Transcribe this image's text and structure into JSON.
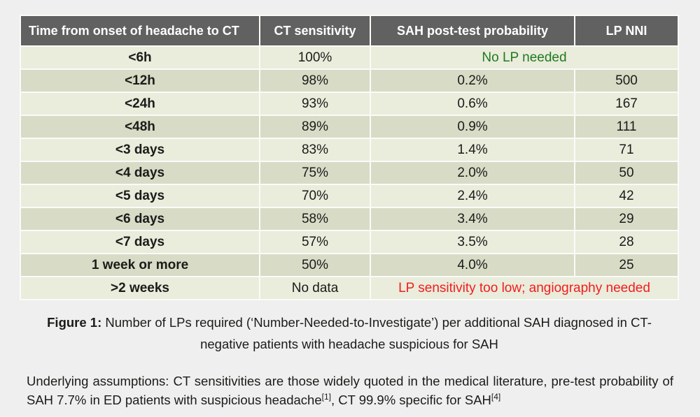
{
  "colors": {
    "page_bg": "#efefef",
    "table_gap": "#fbfbf8",
    "header_bg": "#616161",
    "header_text": "#ffffff",
    "row_light": "#eaecdc",
    "row_dark": "#d8dbc6",
    "body_text": "#1b1b19",
    "green": "#1e7b1e",
    "red": "#f21d1d"
  },
  "table": {
    "columns": [
      "Time from onset of headache to CT",
      "CT sensitivity",
      "SAH post-test probability",
      "LP NNI"
    ],
    "rows": [
      {
        "time": "<6h",
        "ct_sensitivity": "100%",
        "sah_probability": "No LP needed",
        "lp_nni": "",
        "merged": true,
        "highlight": "green"
      },
      {
        "time": "<12h",
        "ct_sensitivity": "98%",
        "sah_probability": "0.2%",
        "lp_nni": "500",
        "merged": false,
        "highlight": ""
      },
      {
        "time": "<24h",
        "ct_sensitivity": "93%",
        "sah_probability": "0.6%",
        "lp_nni": "167",
        "merged": false,
        "highlight": ""
      },
      {
        "time": "<48h",
        "ct_sensitivity": "89%",
        "sah_probability": "0.9%",
        "lp_nni": "111",
        "merged": false,
        "highlight": ""
      },
      {
        "time": "<3 days",
        "ct_sensitivity": "83%",
        "sah_probability": "1.4%",
        "lp_nni": "71",
        "merged": false,
        "highlight": ""
      },
      {
        "time": "<4 days",
        "ct_sensitivity": "75%",
        "sah_probability": "2.0%",
        "lp_nni": "50",
        "merged": false,
        "highlight": ""
      },
      {
        "time": "<5 days",
        "ct_sensitivity": "70%",
        "sah_probability": "2.4%",
        "lp_nni": "42",
        "merged": false,
        "highlight": ""
      },
      {
        "time": "<6 days",
        "ct_sensitivity": "58%",
        "sah_probability": "3.4%",
        "lp_nni": "29",
        "merged": false,
        "highlight": ""
      },
      {
        "time": "<7 days",
        "ct_sensitivity": "57%",
        "sah_probability": "3.5%",
        "lp_nni": "28",
        "merged": false,
        "highlight": ""
      },
      {
        "time": "1 week or more",
        "ct_sensitivity": "50%",
        "sah_probability": "4.0%",
        "lp_nni": "25",
        "merged": false,
        "highlight": ""
      },
      {
        "time": ">2 weeks",
        "ct_sensitivity": "No data",
        "sah_probability": "LP sensitivity too low; angiography needed",
        "lp_nni": "",
        "merged": true,
        "highlight": "red"
      }
    ]
  },
  "caption": {
    "label": "Figure 1:",
    "text": " Number of LPs required (‘Number-Needed-to-Investigate’) per additional SAH diagnosed in CT-negative patients with headache suspicious for SAH"
  },
  "assumptions": {
    "part1": "Underlying assumptions: CT sensitivities are those widely quoted in the medical literature, pre-test probability of SAH 7.7% in ED patients with suspicious headache",
    "ref1": "[1]",
    "part2": ", CT 99.9% specific for SAH",
    "ref2": "[4]"
  }
}
